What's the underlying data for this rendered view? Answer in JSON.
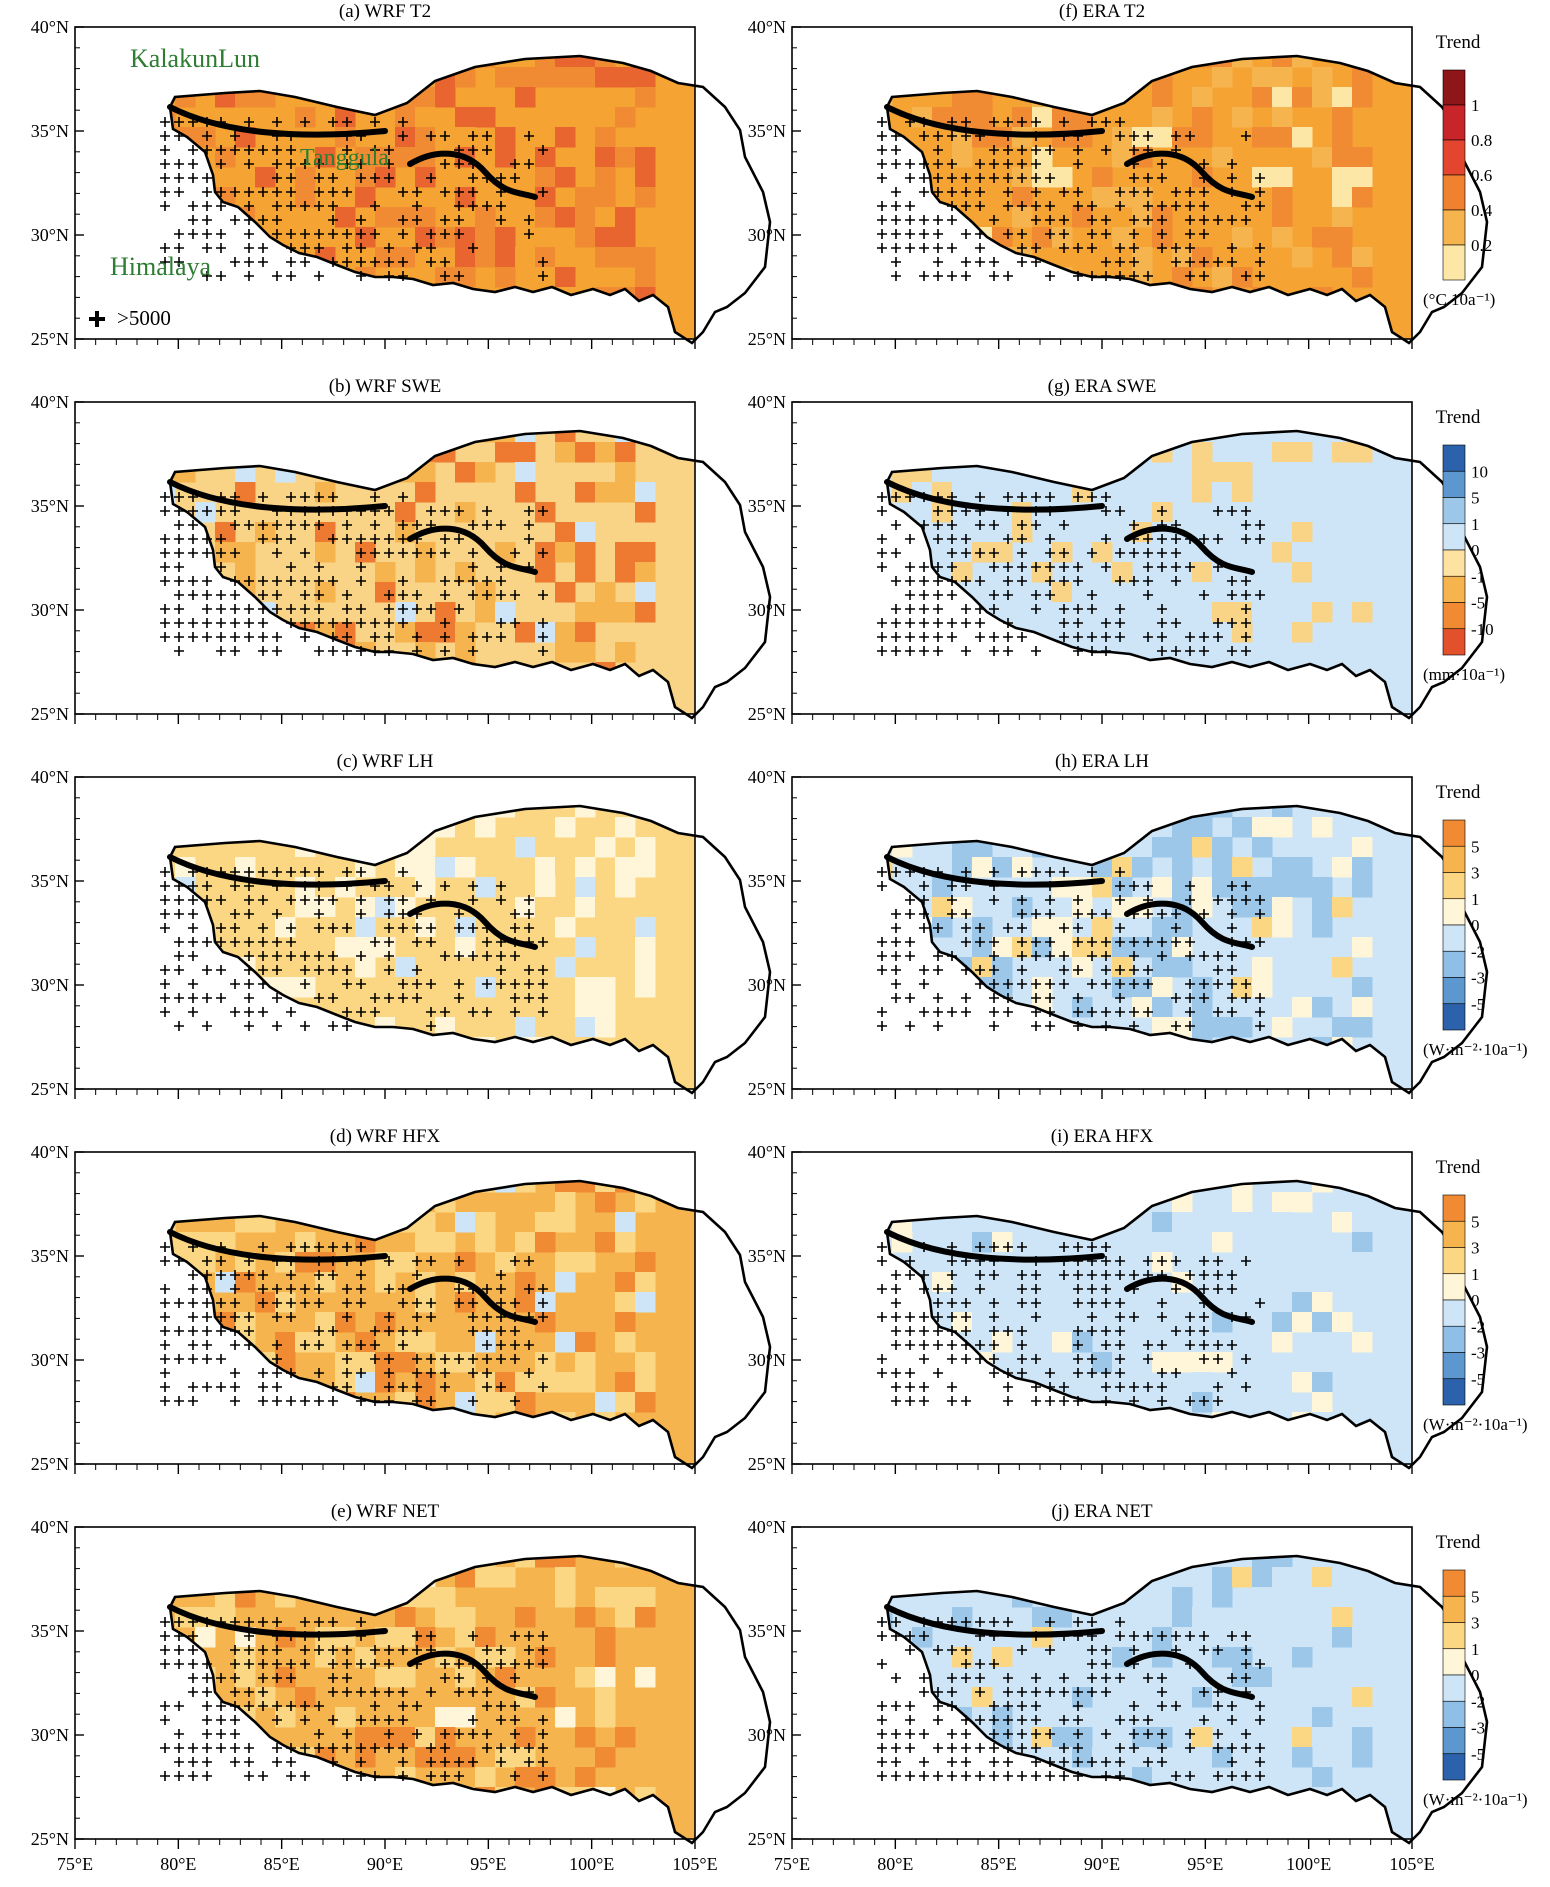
{
  "figure": {
    "map_type": "gridded trend maps, Tibetan Plateau",
    "lat_ticks": [
      "25°N",
      "30°N",
      "35°N",
      "40°N"
    ],
    "lon_ticks": [
      "75°E",
      "80°E",
      "85°E",
      "90°E",
      "95°E",
      "100°E",
      "105°E"
    ],
    "annotations": {
      "kalakunlun": "KalakunLun",
      "tanggula": "Tanggula",
      "himalaya": "Himalaya",
      "plus_legend": ">5000"
    }
  },
  "rows": [
    {
      "left_title": "(a) WRF T2",
      "right_title": "(f) ERA T2",
      "colorbar": {
        "title": "Trend",
        "unit": "(°C 10a⁻¹)",
        "labels": [
          "1",
          "0.8",
          "0.6",
          "0.4",
          "0.2"
        ],
        "colors": [
          "#8e1518",
          "#c8252a",
          "#e4452f",
          "#f0812f",
          "#f6b44f",
          "#fde7a6"
        ],
        "left_palette": [
          "#f5a332",
          "#f08a33",
          "#e8652f",
          "#f5a332"
        ],
        "right_palette": [
          "#f5a332",
          "#f08a33",
          "#f6b44f",
          "#fde7a6"
        ]
      }
    },
    {
      "left_title": "(b) WRF SWE",
      "right_title": "(g) ERA SWE",
      "colorbar": {
        "title": "Trend",
        "unit": "(mm·10a⁻¹)",
        "labels": [
          "10",
          "5",
          "1",
          "0",
          "-1",
          "-5",
          "-10"
        ],
        "colors": [
          "#2b62ab",
          "#5d97cf",
          "#9cc7e9",
          "#cde5f6",
          "#fde2a2",
          "#f6b44f",
          "#f08a33",
          "#e2512b"
        ],
        "left_palette": [
          "#f9d386",
          "#f6b44f",
          "#ee7a32",
          "#cde5f6"
        ],
        "right_palette": [
          "#cde5f6",
          "#cde5f6",
          "#f9d386",
          "#cde5f6"
        ]
      }
    },
    {
      "left_title": "(c) WRF LH",
      "right_title": "(h) ERA LH",
      "colorbar": {
        "title": "Trend",
        "unit": "(W·m⁻²·10a⁻¹)",
        "labels": [
          "5",
          "3",
          "1",
          "0",
          "-2",
          "-3",
          "-5"
        ],
        "colors": [
          "#f08a33",
          "#f6b44f",
          "#fbd683",
          "#fff5d8",
          "#cde5f6",
          "#8fbfe6",
          "#5d97cf",
          "#2b62ab"
        ],
        "left_palette": [
          "#fbd683",
          "#fff5d8",
          "#fbd683",
          "#cde5f6"
        ],
        "right_palette": [
          "#cde5f6",
          "#9cc7e9",
          "#fff5d8",
          "#fbd683"
        ]
      }
    },
    {
      "left_title": "(d) WRF HFX",
      "right_title": "(i) ERA HFX",
      "colorbar": {
        "title": "Trend",
        "unit": "(W·m⁻²·10a⁻¹)",
        "labels": [
          "5",
          "3",
          "1",
          "0",
          "-2",
          "-3",
          "-5"
        ],
        "colors": [
          "#f08a33",
          "#f6b44f",
          "#fbd683",
          "#fff5d8",
          "#cde5f6",
          "#8fbfe6",
          "#5d97cf",
          "#2b62ab"
        ],
        "left_palette": [
          "#f6b44f",
          "#fbd683",
          "#f08a33",
          "#cde5f6"
        ],
        "right_palette": [
          "#cde5f6",
          "#cde5f6",
          "#fff5d8",
          "#9cc7e9"
        ]
      }
    },
    {
      "left_title": "(e) WRF NET",
      "right_title": "(j) ERA NET",
      "colorbar": {
        "title": "Trend",
        "unit": "(W·m⁻²·10a⁻¹)",
        "labels": [
          "5",
          "3",
          "1",
          "0",
          "-2",
          "-3",
          "-5"
        ],
        "colors": [
          "#f08a33",
          "#f6b44f",
          "#fbd683",
          "#fff5d8",
          "#cde5f6",
          "#8fbfe6",
          "#5d97cf",
          "#2b62ab"
        ],
        "left_palette": [
          "#f6b44f",
          "#fbd683",
          "#f08a33",
          "#fff5d8"
        ],
        "right_palette": [
          "#cde5f6",
          "#cde5f6",
          "#9cc7e9",
          "#fbd683"
        ]
      }
    }
  ]
}
